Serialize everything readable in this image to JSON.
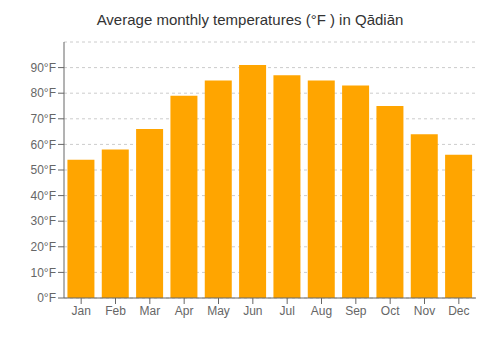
{
  "chart_data": {
    "type": "bar",
    "title": "Average monthly temperatures (°F ) in Qādiān",
    "categories": [
      "Jan",
      "Feb",
      "Mar",
      "Apr",
      "May",
      "Jun",
      "Jul",
      "Aug",
      "Sep",
      "Oct",
      "Nov",
      "Dec"
    ],
    "values": [
      54,
      58,
      66,
      79,
      85,
      91,
      87,
      85,
      83,
      75,
      64,
      56
    ],
    "color": "#FFA500",
    "ylim": [
      0,
      100
    ],
    "yticks": [
      {
        "value": 0,
        "label": "0°F"
      },
      {
        "value": 10,
        "label": "10°F"
      },
      {
        "value": 20,
        "label": "20°F"
      },
      {
        "value": 30,
        "label": "30°F"
      },
      {
        "value": 40,
        "label": "40°F"
      },
      {
        "value": 50,
        "label": "50°F"
      },
      {
        "value": 60,
        "label": "60°F"
      },
      {
        "value": 70,
        "label": "70°F"
      },
      {
        "value": 80,
        "label": "80°F"
      },
      {
        "value": 90,
        "label": "90°F"
      }
    ],
    "grid": true
  }
}
